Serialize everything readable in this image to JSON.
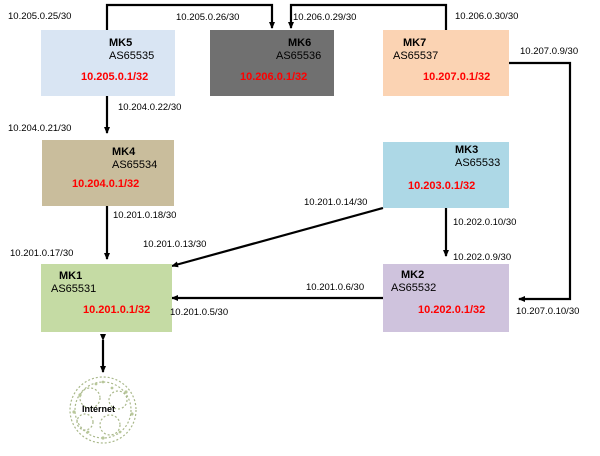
{
  "colors": {
    "mk1": "#c5dba4",
    "mk2": "#cfc3dd",
    "mk3": "#add8e6",
    "mk4": "#c9bd9c",
    "mk5": "#d9e5f3",
    "mk6": "#707070",
    "mk7": "#fbd3b3",
    "network_text": "#ff0000",
    "cloud": "#a9b88a"
  },
  "routers": {
    "mk1": {
      "name": "MK1",
      "asn": "AS65531",
      "network": "10.201.0.1/32"
    },
    "mk2": {
      "name": "MK2",
      "asn": "AS65532",
      "network": "10.202.0.1/32"
    },
    "mk3": {
      "name": "MK3",
      "asn": "AS65533",
      "network": "10.203.0.1/32"
    },
    "mk4": {
      "name": "MK4",
      "asn": "AS65534",
      "network": "10.204.0.1/32"
    },
    "mk5": {
      "name": "MK5",
      "asn": "AS65535",
      "network": "10.205.0.1/32"
    },
    "mk6": {
      "name": "MK6",
      "asn": "AS65536",
      "network": "10.206.0.1/32"
    },
    "mk7": {
      "name": "MK7",
      "asn": "AS65537",
      "network": "10.207.0.1/32"
    }
  },
  "link_labels": {
    "mk5_top": "10.205.0.25/30",
    "mk6_top_left": "10.205.0.26/30",
    "mk6_top_right": "10.206.0.29/30",
    "mk7_top": "10.206.0.30/30",
    "mk7_right": "10.207.0.9/30",
    "mk5_bottom": "10.204.0.22/30",
    "mk4_top": "10.204.0.21/30",
    "mk4_bottom": "10.201.0.18/30",
    "mk1_top": "10.201.0.17/30",
    "mk3_left": "10.201.0.14/30",
    "mk1_diag": "10.201.0.13/30",
    "mk3_bottom": "10.202.0.10/30",
    "mk2_top": "10.202.0.9/30",
    "mk2_left": "10.201.0.6/30",
    "mk1_right": "10.201.0.5/30",
    "mk2_right": "10.207.0.10/30"
  },
  "internet": {
    "label": "Internet",
    "icon": "cloud-icon"
  }
}
